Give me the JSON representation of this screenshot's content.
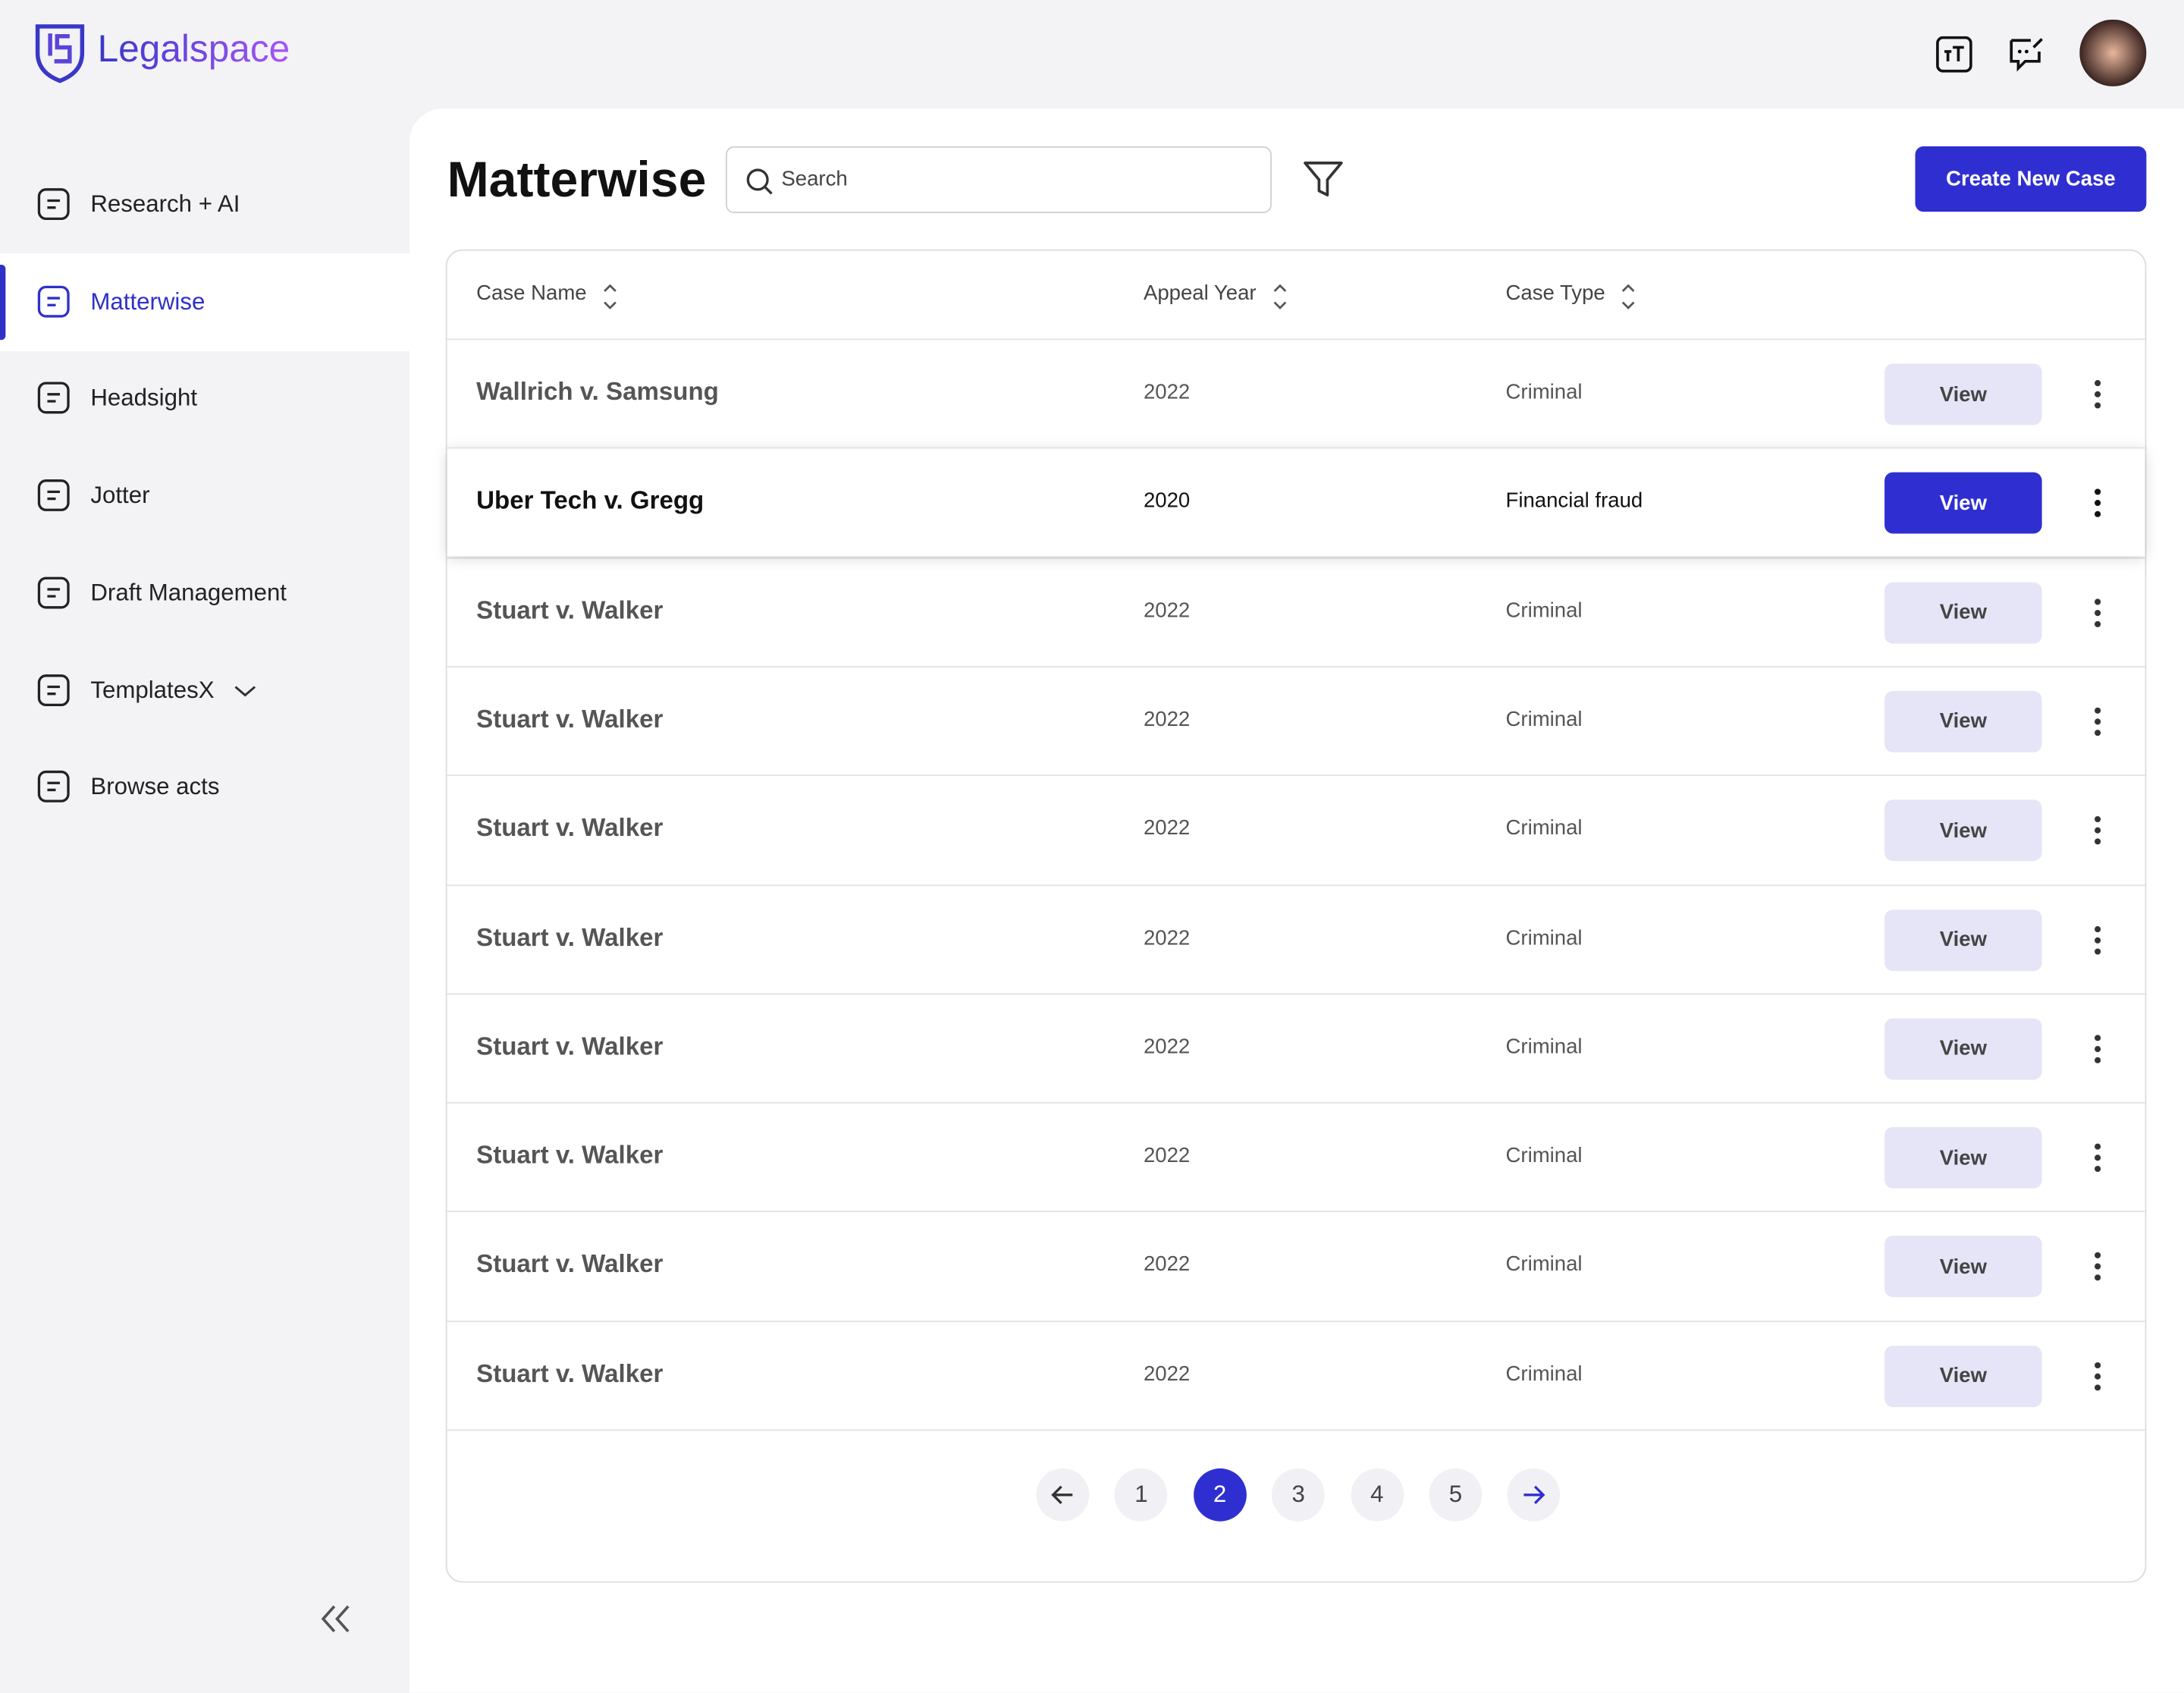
{
  "header": {
    "logo": "Legalspace"
  },
  "sidebar": {
    "items": [
      "Research + AI",
      "Matterwise",
      "Headsight",
      "Jotter",
      "Draft Management",
      "TemplatesX",
      "Browse acts"
    ],
    "active": 1,
    "expandable": 5
  },
  "main": {
    "title": "Matterwise",
    "search_placeholder": "Search",
    "create_button": "Create New Case"
  },
  "table": {
    "columns": [
      "Case Name",
      "Appeal Year",
      "Case Type"
    ],
    "selected_row": 1,
    "rows": [
      [
        "Wallrich v. Samsung",
        "2022",
        "Criminal",
        "View"
      ],
      [
        "Uber Tech v. Gregg",
        "2020",
        "Financial fraud",
        "View"
      ],
      [
        "Stuart v. Walker",
        "2022",
        "Criminal",
        "View"
      ],
      [
        "Stuart v. Walker",
        "2022",
        "Criminal",
        "View"
      ],
      [
        "Stuart v. Walker",
        "2022",
        "Criminal",
        "View"
      ],
      [
        "Stuart v. Walker",
        "2022",
        "Criminal",
        "View"
      ],
      [
        "Stuart v. Walker",
        "2022",
        "Criminal",
        "View"
      ],
      [
        "Stuart v. Walker",
        "2022",
        "Criminal",
        "View"
      ],
      [
        "Stuart v. Walker",
        "2022",
        "Criminal",
        "View"
      ],
      [
        "Stuart v. Walker",
        "2022",
        "Criminal",
        "View"
      ]
    ]
  },
  "pagination": {
    "pages": [
      "1",
      "2",
      "3",
      "4",
      "5"
    ],
    "current": 1
  }
}
